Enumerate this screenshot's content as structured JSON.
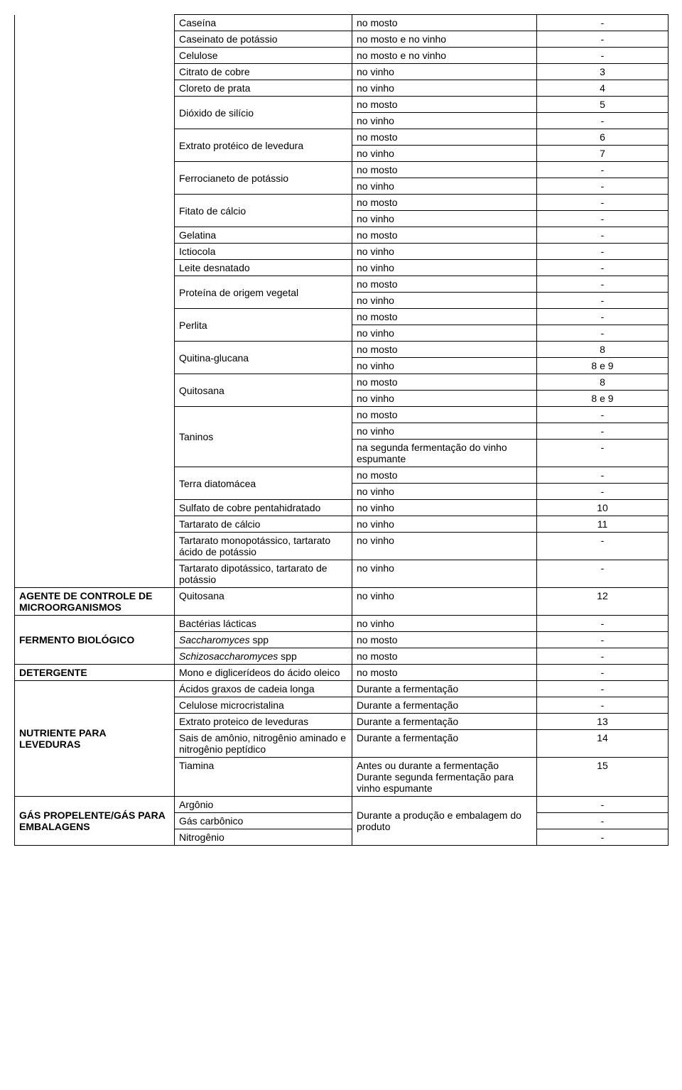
{
  "table": {
    "rows": [
      {
        "sub": "Caseína",
        "use": "no mosto",
        "note": "-"
      },
      {
        "sub": "Caseinato de potássio",
        "use": "no mosto e no vinho",
        "note": "-"
      },
      {
        "sub": "Celulose",
        "use": "no mosto e no vinho",
        "note": "-"
      },
      {
        "sub": "Citrato de cobre",
        "use": "no vinho",
        "note": "3"
      },
      {
        "sub": "Cloreto de prata",
        "use": "no vinho",
        "note": "4"
      },
      {
        "sub": "Dióxido  de silício",
        "rowspan": 2,
        "use": "no mosto",
        "note": "5"
      },
      {
        "use": "no vinho",
        "note": "-"
      },
      {
        "sub": "Extrato protéico de levedura",
        "rowspan": 2,
        "use": "no mosto",
        "note": "6"
      },
      {
        "use": "no vinho",
        "note": "7"
      },
      {
        "sub": "Ferrocianeto de potássio",
        "rowspan": 2,
        "use": "no mosto",
        "note": "-"
      },
      {
        "use": "no vinho",
        "note": "-"
      },
      {
        "sub": "Fitato de cálcio",
        "rowspan": 2,
        "use": "no mosto",
        "note": "-"
      },
      {
        "use": "no vinho",
        "note": "-"
      },
      {
        "sub": "Gelatina",
        "use": "no mosto",
        "note": "-"
      },
      {
        "sub": "Ictiocola",
        "use": "no vinho",
        "note": "-"
      },
      {
        "sub": "Leite desnatado",
        "use": "no vinho",
        "note": "-"
      },
      {
        "sub": "Proteína de origem vegetal",
        "rowspan": 2,
        "use": "no mosto",
        "note": "-"
      },
      {
        "use": "no vinho",
        "note": "-"
      },
      {
        "sub": "Perlita",
        "rowspan": 2,
        "use": "no mosto",
        "note": "-"
      },
      {
        "use": "no vinho",
        "note": "-"
      },
      {
        "sub": "Quitina-glucana",
        "rowspan": 2,
        "use": "no mosto",
        "note": "8"
      },
      {
        "use": "no vinho",
        "note": "8 e 9"
      },
      {
        "sub": "Quitosana",
        "rowspan": 2,
        "use": "no mosto",
        "note": "8"
      },
      {
        "use": "no vinho",
        "note": "8 e 9"
      },
      {
        "sub": "Taninos",
        "rowspan": 3,
        "use": "no mosto",
        "note": "-"
      },
      {
        "use": "no vinho",
        "note": "-"
      },
      {
        "use": "na segunda fermentação do vinho espumante",
        "note": "-"
      },
      {
        "sub": "Terra diatomácea",
        "rowspan": 2,
        "use": "no mosto",
        "note": "-"
      },
      {
        "use": "no vinho",
        "note": "-"
      },
      {
        "sub": "Sulfato de cobre pentahidratado",
        "use": "no vinho",
        "note": "10"
      },
      {
        "sub": "Tartarato de cálcio",
        "use": "no vinho",
        "note": "11"
      },
      {
        "sub": "Tartarato monopotássico, tartarato ácido de potássio",
        "use": "no vinho",
        "note": "-"
      },
      {
        "sub": "Tartarato dipotássico, tartarato de potássio",
        "use": "no vinho",
        "note": "-"
      }
    ],
    "categories": [
      {
        "label": "AGENTE DE CONTROLE DE MICROORGANISMOS",
        "rows": [
          {
            "sub": "Quitosana",
            "use": "no vinho",
            "note": "12"
          }
        ]
      },
      {
        "label": "FERMENTO BIOLÓGICO",
        "rows": [
          {
            "sub": "Bactérias lácticas",
            "use": "no vinho",
            "note": "-"
          },
          {
            "sub": "Saccharomyces spp",
            "italic": "Saccharomyces",
            "suffix": " spp",
            "use": "no mosto",
            "note": "-"
          },
          {
            "sub": "Schizosaccharomyces spp",
            "italic": "Schizosaccharomyces",
            "suffix": " spp",
            "use": "no mosto",
            "note": "-"
          }
        ]
      },
      {
        "label": "DETERGENTE",
        "rows": [
          {
            "sub": "Mono e diglicerídeos do ácido oleico",
            "use": "no mosto",
            "note": "-"
          }
        ]
      },
      {
        "label": "NUTRIENTE PARA LEVEDURAS",
        "rows": [
          {
            "sub": "Ácidos graxos de cadeia longa",
            "use": "Durante a fermentação",
            "note": "-"
          },
          {
            "sub": "Celulose microcristalina",
            "use": "Durante a fermentação",
            "note": "-"
          },
          {
            "sub": "Extrato proteico de leveduras",
            "use": "Durante a fermentação",
            "note": "13"
          },
          {
            "sub": "Sais de amônio, nitrogênio aminado e nitrogênio peptídico",
            "use": "Durante a fermentação",
            "note": "14"
          },
          {
            "sub": "Tiamina",
            "use": "Antes ou durante a fermentação\nDurante segunda fermentação para vinho espumante",
            "note": "15"
          }
        ]
      },
      {
        "label": "GÁS PROPELENTE/GÁS PARA EMBALAGENS",
        "rows": [
          {
            "sub": "Argônio",
            "use": "Durante a produção e embalagem do produto",
            "useRowspan": 3,
            "note": "-"
          },
          {
            "sub": "Gás carbônico",
            "note": "-"
          },
          {
            "sub": "Nitrogênio",
            "note": "-"
          }
        ]
      }
    ]
  }
}
